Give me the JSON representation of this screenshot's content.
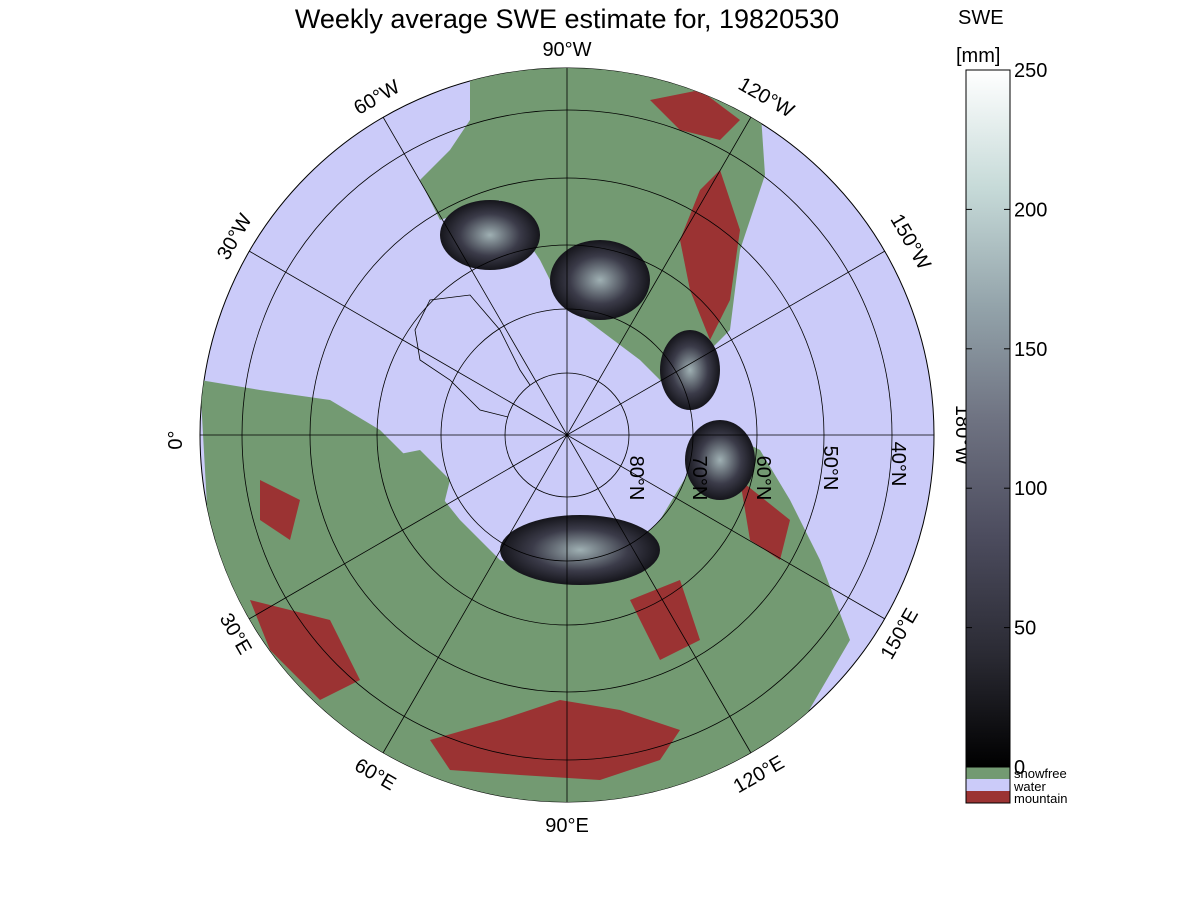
{
  "title": "Weekly average SWE estimate for, 19820530",
  "longitude_labels": {
    "w90": "90°W",
    "w120": "120°W",
    "w150": "150°W",
    "w180": "180°W",
    "w60": "60°W",
    "w30": "30°W",
    "zero": "0°",
    "e30": "30°E",
    "e60": "60°E",
    "e90": "90°E",
    "e120": "120°E",
    "e150": "150°E"
  },
  "latitude_labels": [
    "80°N",
    "70°N",
    "60°N",
    "50°N",
    "40°N"
  ],
  "colorbar": {
    "title_line1": "SWE",
    "title_line2": "[mm]",
    "range": [
      0,
      250
    ],
    "ticks": [
      "0",
      "50",
      "100",
      "150",
      "200",
      "250"
    ],
    "gradient": [
      "#000000",
      "#2a2a33",
      "#4c4c5e",
      "#6f7382",
      "#93a3aa",
      "#c6dad8",
      "#ffffff"
    ]
  },
  "legend": [
    {
      "label": "snowfree",
      "color": "#739a72"
    },
    {
      "label": "water",
      "color": "#cbcbf9"
    },
    {
      "label": "mountain",
      "color": "#9b3333"
    }
  ],
  "colors": {
    "water": "#cbcbf9",
    "land": "#739a72",
    "mountain": "#9b3333",
    "snow_dark": "#23232b",
    "snow_light": "#c6dad8"
  }
}
